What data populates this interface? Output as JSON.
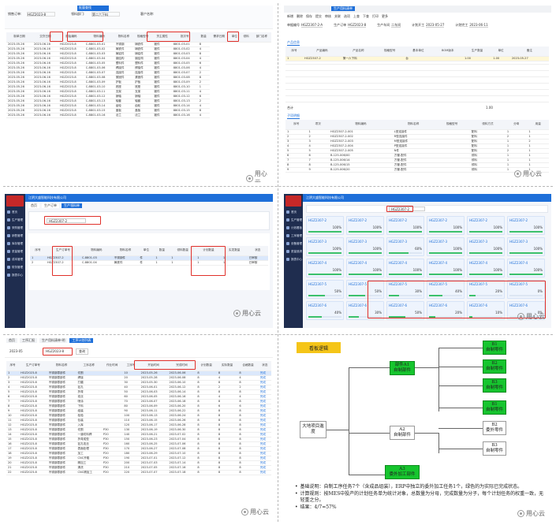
{
  "watermark": "用心云",
  "panel1": {
    "filters": [
      {
        "label": "销售订单:",
        "value": "HGZ2023-8"
      },
      {
        "label": "领料部门:",
        "value": "第二六下料"
      },
      {
        "label": "客户名称:",
        "value": ""
      }
    ],
    "link": "批量查找",
    "columns": [
      "制单日期",
      "交货日期",
      "原始编码",
      "物料编码",
      "物料名称",
      "规格型号",
      "货主属性",
      "批次号",
      "数量",
      "需求日期",
      "单位",
      "领料",
      "部门名称"
    ],
    "rows": [
      [
        "2023-05-26",
        "2023-06-16",
        "HGZ2023-8",
        "C-8801-03-01",
        "不锈钢",
        "铸铁件",
        "锻件",
        "8801-03-01",
        "8"
      ],
      [
        "2023-05-26",
        "2023-06-16",
        "HGZ2023-8",
        "C-8801-03-02",
        "铸铁件",
        "铸铁件",
        "锻件",
        "8801-03-02",
        "4"
      ],
      [
        "2023-05-26",
        "2023-06-16",
        "HGZ2023-8",
        "C-8801-03-03",
        "铸铝件",
        "铸铝件",
        "锻件",
        "8801-03-03",
        "8"
      ],
      [
        "2023-05-26",
        "2023-06-16",
        "HGZ2023-8",
        "C-8801-03-04",
        "钢结构",
        "钢结构",
        "锻件",
        "8801-03-04",
        "4"
      ],
      [
        "2023-05-26",
        "2023-06-16",
        "HGZ2023-8",
        "C-8801-03-05",
        "塑料件",
        "塑料件",
        "锻件",
        "8801-03-05",
        "6"
      ],
      [
        "2023-05-26",
        "2023-06-16",
        "HGZ2023-8",
        "C-8801-03-06",
        "焊接件",
        "焊接件",
        "锻件",
        "8801-03-06",
        "4"
      ],
      [
        "2023-05-26",
        "2023-06-16",
        "HGZ2023-8",
        "C-8801-03-07",
        "连接件",
        "连接件",
        "锻件",
        "8801-03-07",
        "2"
      ],
      [
        "2023-05-26",
        "2023-06-16",
        "HGZ2023-8",
        "C-8801-03-08",
        "紧固件",
        "紧固件",
        "锻件",
        "8801-03-08",
        "8"
      ],
      [
        "2023-05-26",
        "2023-06-16",
        "HGZ2023-8",
        "C-8801-03-09",
        "护板",
        "护板",
        "锻件",
        "8801-03-09",
        "2"
      ],
      [
        "2023-05-26",
        "2023-06-16",
        "HGZ2023-8",
        "C-8801-03-10",
        "底座",
        "底座",
        "锻件",
        "8801-03-10",
        "1"
      ],
      [
        "2023-05-26",
        "2023-06-16",
        "HGZ2023-8",
        "C-8801-03-11",
        "支架",
        "支架",
        "锻件",
        "8801-03-11",
        "4"
      ],
      [
        "2023-05-26",
        "2023-06-16",
        "HGZ2023-8",
        "C-8801-03-12",
        "销轴",
        "销轴",
        "锻件",
        "8801-03-12",
        "6"
      ],
      [
        "2023-05-26",
        "2023-06-16",
        "HGZ2023-8",
        "C-8801-03-13",
        "轴套",
        "轴套",
        "锻件",
        "8801-03-13",
        "2"
      ],
      [
        "2023-05-26",
        "2023-06-16",
        "HGZ2023-8",
        "C-8801-03-14",
        "齿轮",
        "齿轮",
        "锻件",
        "8801-03-14",
        "4"
      ],
      [
        "2023-05-26",
        "2023-06-16",
        "HGZ2023-8",
        "C-8801-03-15",
        "盖板",
        "盖板",
        "锻件",
        "8801-03-15",
        "8"
      ],
      [
        "2023-05-26",
        "2023-06-16",
        "HGZ2023-8",
        "C-8801-03-16",
        "法兰",
        "法兰",
        "锻件",
        "8801-03-16",
        "4"
      ]
    ]
  },
  "panel2": {
    "tabs": [
      "生产用料清单"
    ],
    "menu": [
      "新增",
      "删除",
      "保存",
      "提交",
      "审核",
      "关联",
      "选项",
      "上查",
      "下查",
      "打印",
      "更多"
    ],
    "header": [
      {
        "label": "单据编号",
        "value": "HGZ2307-2-A"
      },
      {
        "label": "生产订单",
        "value": "HGZ2023-8"
      },
      {
        "label": "生产车间",
        "value": "二车间"
      },
      {
        "label": "计划开工",
        "value": "2023-05-27"
      },
      {
        "label": "计划完工",
        "value": "2023-06-11"
      }
    ],
    "tab_top": "产品信息",
    "columns_top": [
      "序号",
      "产品编码",
      "产品名称",
      "规格型号",
      "基本单位",
      "BOM版本",
      "生产数量",
      "单位",
      "备注"
    ],
    "row_top": [
      "1",
      "HGZ2307-2",
      "第一六下料",
      "",
      "台",
      "",
      "1.00",
      "1.00",
      "2023-05-27"
    ],
    "total_label": "合计",
    "total_value": "1.00",
    "tab_bottom": "子项明细",
    "columns_bottom": [
      "序号",
      "项次",
      "物料编码",
      "物料名称",
      "规格型号",
      "领料方式",
      "分母",
      "用量"
    ],
    "rows_bottom": [
      [
        "1",
        "1",
        "HGZ2307-2-001",
        "L型连接件",
        "",
        "配料",
        "1",
        "1"
      ],
      [
        "2",
        "2",
        "HGZ2307-2-002",
        "R型连接件",
        "",
        "配料",
        "2",
        "1"
      ],
      [
        "3",
        "3",
        "HGZ2307-2-003",
        "M型连接件",
        "",
        "配料",
        "1",
        "2"
      ],
      [
        "4",
        "4",
        "HGZ2307-2-004",
        "P型连接件",
        "",
        "配料",
        "1",
        "1"
      ],
      [
        "5",
        "5",
        "HGZ2307-2-005",
        "N件",
        "",
        "配料",
        "2",
        "1"
      ],
      [
        "6",
        "6",
        "B-125-006/00",
        "方管-配件",
        "",
        "领料",
        "1",
        "1"
      ],
      [
        "7",
        "7",
        "B-125-006/14",
        "方管-配件",
        "",
        "领料",
        "1",
        "1"
      ],
      [
        "8",
        "8",
        "B-125-006/15",
        "方管-配件",
        "",
        "领料",
        "1",
        "1"
      ],
      [
        "9",
        "9",
        "B-125-006/20",
        "方管-配件",
        "",
        "领料",
        "1",
        "1"
      ]
    ]
  },
  "panel3": {
    "company": "江阴大盛智能科技有限公司",
    "sidebar": [
      "首页",
      "生产管理",
      "采购管理",
      "销售管理",
      "库存管理",
      "质量管理",
      "成本管理",
      "财务管理",
      "报表中心"
    ],
    "tabs": [
      "首页",
      "生产订单",
      "生产领料单"
    ],
    "search": "HGZ2307-2",
    "columns": [
      "序号",
      "生产订单号",
      "物料编码",
      "物料名称",
      "单位",
      "数量",
      "领料数量",
      "计划数量",
      "实发数量",
      "状态"
    ],
    "rows": [
      [
        "1",
        "HGZ2307-2",
        "C-8801-03",
        "不锈钢件",
        "件",
        "1",
        "1",
        "1",
        "1",
        "已审核"
      ],
      [
        "2",
        "HGZ2307-2",
        "C-8801-04",
        "铸铁件",
        "件",
        "1",
        "1",
        "1",
        "1",
        "已审核"
      ]
    ]
  },
  "panel4": {
    "company": "江阴大盛智能科技有限公司",
    "sidebar": [
      "首页",
      "生产管理",
      "计划看板",
      "工序管理",
      "设备管理",
      "质量追溯",
      "报表中心"
    ],
    "search": "HGZ2307-2",
    "cards": [
      {
        "code": "HGZ2307-2",
        "pct": "100%",
        "p": 1.0
      },
      {
        "code": "HGZ2307-2",
        "pct": "100%",
        "p": 1.0
      },
      {
        "code": "HGZ2307-2",
        "pct": "100%",
        "p": 1.0
      },
      {
        "code": "HGZ2307-2",
        "pct": "100%",
        "p": 1.0
      },
      {
        "code": "HGZ2307-2",
        "pct": "100%",
        "p": 1.0
      },
      {
        "code": "HGZ2307-2",
        "pct": "100%",
        "p": 1.0
      },
      {
        "code": "HGZ2307-3",
        "pct": "100%",
        "p": 1.0
      },
      {
        "code": "HGZ2307-3",
        "pct": "100%",
        "p": 1.0
      },
      {
        "code": "HGZ2307-3",
        "pct": "60%",
        "p": 0.6
      },
      {
        "code": "HGZ2307-3",
        "pct": "100%",
        "p": 1.0
      },
      {
        "code": "HGZ2307-3",
        "pct": "100%",
        "p": 1.0
      },
      {
        "code": "HGZ2307-3",
        "pct": "100%",
        "p": 1.0
      },
      {
        "code": "HGZ2307-4",
        "pct": "100%",
        "p": 1.0
      },
      {
        "code": "HGZ2307-4",
        "pct": "100%",
        "p": 1.0
      },
      {
        "code": "HGZ2307-4",
        "pct": "100%",
        "p": 1.0
      },
      {
        "code": "HGZ2307-4",
        "pct": "100%",
        "p": 1.0
      },
      {
        "code": "HGZ2307-4",
        "pct": "100%",
        "p": 1.0
      },
      {
        "code": "HGZ2307-4",
        "pct": "100%",
        "p": 1.0
      },
      {
        "code": "HGZ2307-5",
        "pct": "50%",
        "p": 0.5
      },
      {
        "code": "HGZ2307-5",
        "pct": "50%",
        "p": 0.5
      },
      {
        "code": "HGZ2307-5",
        "pct": "30%",
        "p": 0.3
      },
      {
        "code": "HGZ2307-5",
        "pct": "40%",
        "p": 0.4
      },
      {
        "code": "HGZ2307-5",
        "pct": "20%",
        "p": 0.2
      },
      {
        "code": "HGZ2307-5",
        "pct": "0%",
        "p": 0.0
      },
      {
        "code": "HGZ2307-6",
        "pct": "40%",
        "p": 0.4
      },
      {
        "code": "HGZ2307-6",
        "pct": "30%",
        "p": 0.3
      },
      {
        "code": "HGZ2307-6",
        "pct": "50%",
        "p": 0.5
      },
      {
        "code": "HGZ2307-6",
        "pct": "20%",
        "p": 0.2
      },
      {
        "code": "HGZ2307-6",
        "pct": "10%",
        "p": 0.1
      },
      {
        "code": "HGZ2307-6",
        "pct": "0%",
        "p": 0.0
      }
    ]
  },
  "panel5": {
    "tabs": [
      "首页",
      "工序汇报",
      "生产用料清单-明",
      "工序计划列表"
    ],
    "date_filter": "2023-05",
    "order_filter": "HGZ2023-8",
    "query_btn": "查询",
    "columns": [
      "序号",
      "生产订单号",
      "物料名称",
      "工序名称",
      "作业时间",
      "工序号",
      "开始时间",
      "完成时间",
      "计划数量",
      "实际数量",
      "合格数量",
      "状态"
    ],
    "rows": [
      [
        "1",
        "HGZ2023-8",
        "不锈钢零部件",
        "切割",
        "",
        "10",
        "2023-05-26",
        "2023-06-06",
        "8",
        "8",
        "8",
        "完成"
      ],
      [
        "2",
        "HGZ2023-8",
        "不锈钢零部件",
        "焊接",
        "",
        "20",
        "2023-05-28",
        "2023-06-08",
        "8",
        "4",
        "4",
        "完成"
      ],
      [
        "3",
        "HGZ2023-8",
        "不锈钢零部件",
        "打磨",
        "",
        "30",
        "2023-05-30",
        "2023-06-10",
        "8",
        "8",
        "8",
        "完成"
      ],
      [
        "4",
        "HGZ2023-8",
        "不锈钢零部件",
        "钻孔",
        "",
        "40",
        "2023-06-01",
        "2023-06-12",
        "8",
        "2",
        "2",
        "完成"
      ],
      [
        "5",
        "HGZ2023-8",
        "不锈钢零部件",
        "折弯",
        "",
        "50",
        "2023-06-03",
        "2023-06-14",
        "8",
        "8",
        "8",
        "完成"
      ],
      [
        "6",
        "HGZ2023-8",
        "不锈钢零部件",
        "攻丝",
        "",
        "60",
        "2023-06-05",
        "2023-06-16",
        "8",
        "4",
        "4",
        "完成"
      ],
      [
        "7",
        "HGZ2023-8",
        "不锈钢零部件",
        "喷涂",
        "",
        "70",
        "2023-06-07",
        "2023-06-18",
        "8",
        "8",
        "8",
        "完成"
      ],
      [
        "8",
        "HGZ2023-8",
        "不锈钢零部件",
        "下料",
        "",
        "80",
        "2023-06-09",
        "2023-06-20",
        "8",
        "6",
        "6",
        "完成"
      ],
      [
        "9",
        "HGZ2023-8",
        "不锈钢零部件",
        "组装",
        "",
        "90",
        "2023-06-11",
        "2023-06-22",
        "8",
        "8",
        "8",
        "完成"
      ],
      [
        "10",
        "HGZ2023-8",
        "不锈钢零部件",
        "检验",
        "",
        "100",
        "2023-06-13",
        "2023-06-24",
        "8",
        "8",
        "8",
        "完成"
      ],
      [
        "11",
        "HGZ2023-8",
        "不锈钢零部件",
        "包装",
        "",
        "110",
        "2023-06-15",
        "2023-06-26",
        "8",
        "8",
        "8",
        "完成"
      ],
      [
        "12",
        "HGZ2023-8",
        "不锈钢零部件",
        "入库",
        "",
        "120",
        "2023-06-17",
        "2023-06-28",
        "8",
        "8",
        "8",
        "完成"
      ],
      [
        "13",
        "HGZ2023-8",
        "不锈钢零部件",
        "切割",
        "P30",
        "130",
        "2023-06-19",
        "2023-06-30",
        "8",
        "8",
        "8",
        "完成"
      ],
      [
        "14",
        "HGZ2023-8",
        "不锈钢零部件",
        "一道切料焊",
        "P20",
        "140",
        "2023-06-21",
        "2023-07-02",
        "8",
        "8",
        "8",
        "完成"
      ],
      [
        "15",
        "HGZ2023-8",
        "不锈钢零部件",
        "折弯成型",
        "P30",
        "150",
        "2023-06-23",
        "2023-07-04",
        "8",
        "8",
        "8",
        "完成"
      ],
      [
        "16",
        "HGZ2023-8",
        "不锈钢零部件",
        "钻孔攻丝",
        "P20",
        "160",
        "2023-06-25",
        "2023-07-06",
        "8",
        "8",
        "8",
        "完成"
      ],
      [
        "17",
        "HGZ2023-8",
        "不锈钢零部件",
        "表面处理",
        "P30",
        "170",
        "2023-06-27",
        "2023-07-08",
        "8",
        "8",
        "8",
        "完成"
      ],
      [
        "18",
        "HGZ2023-8",
        "不锈钢零部件",
        "加工",
        "P20",
        "180",
        "2023-06-29",
        "2023-07-10",
        "8",
        "8",
        "8",
        "完成"
      ],
      [
        "19",
        "HGZ2023-8",
        "不锈钢零部件",
        "CNC开粗",
        "P30",
        "190",
        "2023-07-01",
        "2023-07-12",
        "8",
        "8",
        "8",
        "完成"
      ],
      [
        "20",
        "HGZ2023-8",
        "不锈钢零部件",
        "精加工",
        "P20",
        "200",
        "2023-07-03",
        "2023-07-14",
        "8",
        "8",
        "8",
        "完成"
      ],
      [
        "21",
        "HGZ2023-8",
        "不锈钢零部件",
        "清洗",
        "P30",
        "210",
        "2023-07-05",
        "2023-07-16",
        "8",
        "8",
        "8",
        "完成"
      ],
      [
        "22",
        "HGZ2023-8",
        "不锈钢零部件",
        "CNC精加工",
        "P20",
        "220",
        "2023-07-07",
        "2023-07-18",
        "8",
        "8",
        "8",
        "完成"
      ]
    ]
  },
  "panel6": {
    "title": "看板逻辑",
    "root": "大地项目進度",
    "a1": "部件A1\n自制部件",
    "a2": "A2\n自制部件",
    "a3": "A3\n委外加工部件",
    "b": [
      {
        "label": "B1\n自制零件",
        "green": true
      },
      {
        "label": "B2\n自制零件",
        "green": true
      },
      {
        "label": "B3\n自制零件",
        "green": true
      },
      {
        "label": "B1\n自制零件",
        "green": true
      },
      {
        "label": "B2\n委外零件",
        "green": false
      },
      {
        "label": "B3\n自制零件",
        "green": false
      }
    ],
    "notes": [
      "基础说明：自制工序任务7个（含成品组装），ERP中独立的委外加工任务1个，绿色的为实际已完成状态。",
      "计算规则：按MES中投产的计划任务单为统计对象，总数量为分母，完成数量为分子，每个计划任务的权重一致，无轻重之分。",
      "结果：4/7=57%"
    ]
  }
}
